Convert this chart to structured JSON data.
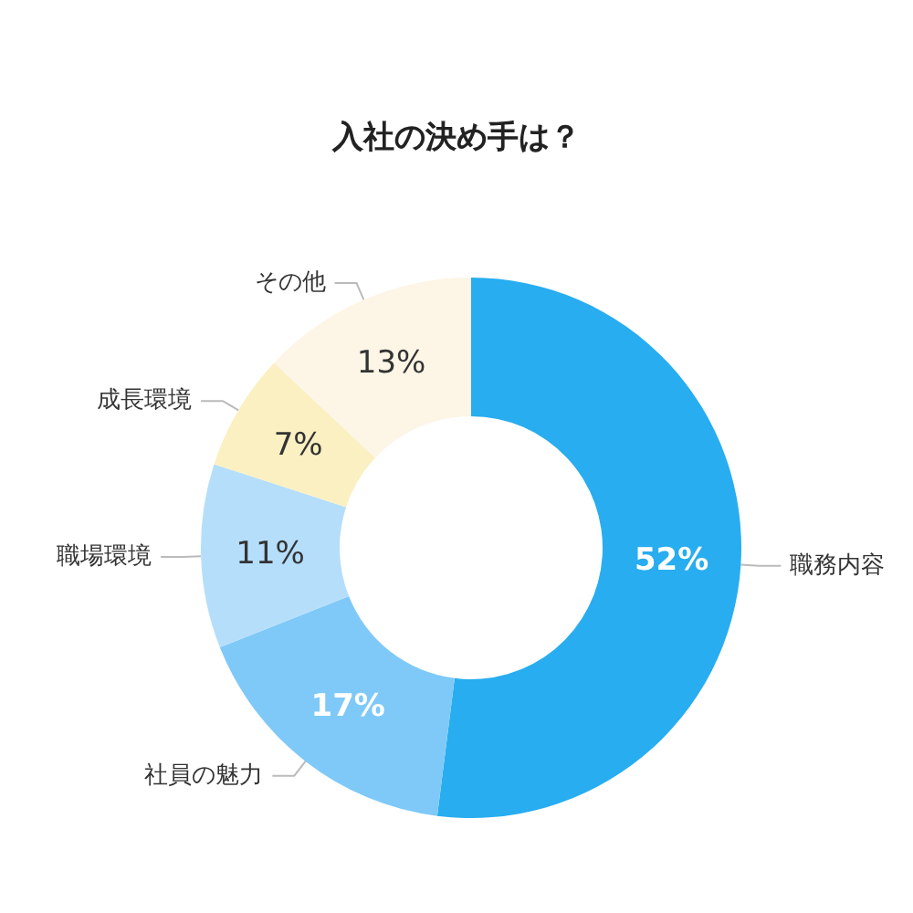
{
  "chart_data": {
    "type": "donut",
    "title": "入社の決め手は？",
    "categories": [
      "職務内容",
      "社員の魅力",
      "職場環境",
      "成長環境",
      "その他"
    ],
    "values": [
      52,
      17,
      11,
      7,
      13
    ],
    "colors": [
      "#27adf0",
      "#7fc9f8",
      "#b5defb",
      "#fbf0c2",
      "#fdf5e6"
    ],
    "value_labels": [
      "52%",
      "17%",
      "11%",
      "7%",
      "13%"
    ],
    "legend": false
  }
}
